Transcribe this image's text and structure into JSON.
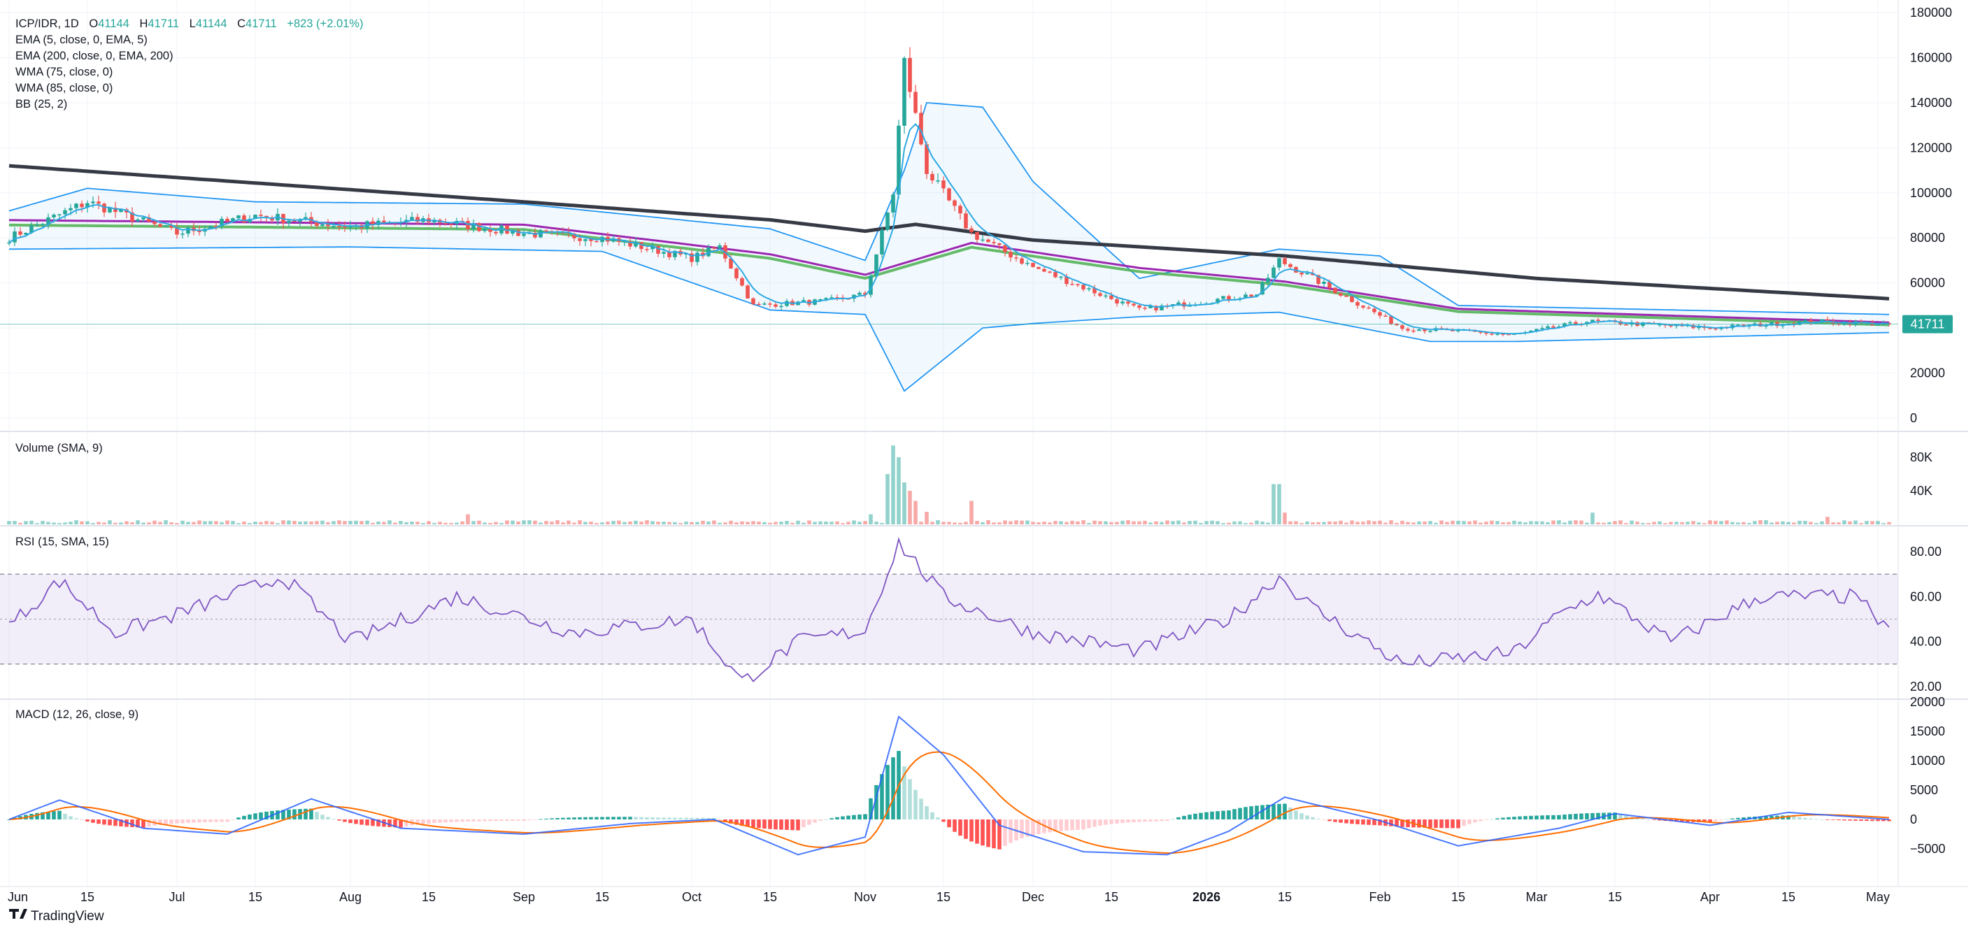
{
  "header": {
    "symbol": "ICP/IDR, 1D",
    "o_label": "O",
    "o_value": "41144",
    "h_label": "H",
    "h_value": "41711",
    "l_label": "L",
    "l_value": "41144",
    "c_label": "C",
    "c_value": "41711",
    "change": "+823 (+2.01%)"
  },
  "indicators": [
    "EMA (5, close, 0, EMA, 5)",
    "EMA (200, close, 0, EMA, 200)",
    "WMA (75, close, 0)",
    "WMA (85, close, 0)",
    "BB (25, 2)"
  ],
  "pane_titles": {
    "volume": "Volume (SMA, 9)",
    "rsi": "RSI (15, SMA, 15)",
    "macd": "MACD (12, 26, close, 9)"
  },
  "price_tag": "41711",
  "brand": "TradingView",
  "colors": {
    "up": "#26a69a",
    "down": "#ef5350",
    "ema5": "#2ca9e1",
    "ema200": "#363a45",
    "wma75": "#9c27b0",
    "wma85": "#4caf50",
    "bb": "#2196f3",
    "rsi": "#7e57c2",
    "macd": "#2962ff",
    "signal": "#ff6d00"
  },
  "chart_data": {
    "type": "candlestick+indicators",
    "x_ticks": [
      "Jun",
      "15",
      "Jul",
      "15",
      "Aug",
      "15",
      "Sep",
      "15",
      "Oct",
      "15",
      "Nov",
      "15",
      "Dec",
      "15",
      "2026",
      "15",
      "Feb",
      "15",
      "Mar",
      "15",
      "Apr",
      "15",
      "May"
    ],
    "price_axis": {
      "ticks": [
        "180000",
        "160000",
        "140000",
        "120000",
        "100000",
        "80000",
        "60000",
        "40000",
        "20000",
        "0"
      ],
      "range": [
        0,
        180000
      ]
    },
    "volume_axis": {
      "ticks": [
        "80K",
        "40K"
      ],
      "range": [
        0,
        100000
      ]
    },
    "rsi_axis": {
      "ticks": [
        "80.00",
        "60.00",
        "40.00",
        "20.00"
      ],
      "band": [
        30,
        70
      ],
      "mid": 50
    },
    "macd_axis": {
      "ticks": [
        "20000",
        "15000",
        "10000",
        "5000",
        "0",
        "−5000"
      ],
      "range": [
        -6500,
        20000
      ]
    },
    "price_anchors": [
      [
        "2025-06-01",
        80000
      ],
      [
        "2025-06-15",
        96000
      ],
      [
        "2025-07-01",
        82000
      ],
      [
        "2025-07-15",
        90000
      ],
      [
        "2025-08-01",
        85000
      ],
      [
        "2025-08-15",
        88000
      ],
      [
        "2025-09-01",
        82000
      ],
      [
        "2025-09-15",
        80000
      ],
      [
        "2025-10-01",
        71000
      ],
      [
        "2025-10-06",
        76000
      ],
      [
        "2025-10-12",
        50000
      ],
      [
        "2025-10-25",
        52000
      ],
      [
        "2025-11-01",
        55000
      ],
      [
        "2025-11-06",
        100000
      ],
      [
        "2025-11-08",
        158000
      ],
      [
        "2025-11-12",
        110000
      ],
      [
        "2025-11-20",
        82000
      ],
      [
        "2025-12-01",
        67000
      ],
      [
        "2025-12-20",
        48000
      ],
      [
        "2026-01-10",
        55000
      ],
      [
        "2026-01-14",
        70000
      ],
      [
        "2026-01-20",
        62000
      ],
      [
        "2026-02-05",
        40000
      ],
      [
        "2026-02-25",
        37000
      ],
      [
        "2026-03-10",
        43000
      ],
      [
        "2026-04-01",
        40000
      ],
      [
        "2026-04-20",
        43000
      ],
      [
        "2026-05-03",
        41711
      ]
    ],
    "ema200_anchors": [
      [
        "2025-06-01",
        112000
      ],
      [
        "2025-09-01",
        96000
      ],
      [
        "2025-10-15",
        88000
      ],
      [
        "2025-11-01",
        83000
      ],
      [
        "2025-11-10",
        86000
      ],
      [
        "2025-12-01",
        79000
      ],
      [
        "2026-01-15",
        72000
      ],
      [
        "2026-03-01",
        62000
      ],
      [
        "2026-05-03",
        53000
      ]
    ],
    "wma_anchors": [
      [
        "2025-06-01",
        87000
      ],
      [
        "2025-09-01",
        85000
      ],
      [
        "2025-10-15",
        72000
      ],
      [
        "2025-11-01",
        63000
      ],
      [
        "2025-11-20",
        77000
      ],
      [
        "2025-12-20",
        66000
      ],
      [
        "2026-01-15",
        60000
      ],
      [
        "2026-02-15",
        48000
      ],
      [
        "2026-05-03",
        42000
      ]
    ],
    "bb_upper_anchors": [
      [
        "2025-06-01",
        92000
      ],
      [
        "2025-06-15",
        102000
      ],
      [
        "2025-07-15",
        96000
      ],
      [
        "2025-09-01",
        95000
      ],
      [
        "2025-10-15",
        84000
      ],
      [
        "2025-11-01",
        70000
      ],
      [
        "2025-11-08",
        110000
      ],
      [
        "2025-11-12",
        140000
      ],
      [
        "2025-11-22",
        138000
      ],
      [
        "2025-12-01",
        105000
      ],
      [
        "2025-12-20",
        62000
      ],
      [
        "2026-01-14",
        75000
      ],
      [
        "2026-02-01",
        72000
      ],
      [
        "2026-02-15",
        50000
      ],
      [
        "2026-05-03",
        46000
      ]
    ],
    "bb_lower_anchors": [
      [
        "2025-06-01",
        75000
      ],
      [
        "2025-08-01",
        76000
      ],
      [
        "2025-09-15",
        74000
      ],
      [
        "2025-10-15",
        48000
      ],
      [
        "2025-11-01",
        46000
      ],
      [
        "2025-11-08",
        12000
      ],
      [
        "2025-11-22",
        40000
      ],
      [
        "2025-12-01",
        42000
      ],
      [
        "2025-12-20",
        45000
      ],
      [
        "2026-01-14",
        47000
      ],
      [
        "2026-02-10",
        34000
      ],
      [
        "2026-02-25",
        34000
      ],
      [
        "2026-05-03",
        38000
      ]
    ],
    "rsi_anchors": [
      [
        "2025-06-01",
        47
      ],
      [
        "2025-06-10",
        67
      ],
      [
        "2025-06-20",
        44
      ],
      [
        "2025-07-01",
        52
      ],
      [
        "2025-07-20",
        69
      ],
      [
        "2025-08-01",
        40
      ],
      [
        "2025-08-20",
        60
      ],
      [
        "2025-09-10",
        44
      ],
      [
        "2025-10-01",
        50
      ],
      [
        "2025-10-10",
        22
      ],
      [
        "2025-10-20",
        40
      ],
      [
        "2025-11-01",
        45
      ],
      [
        "2025-11-07",
        84
      ],
      [
        "2025-11-15",
        60
      ],
      [
        "2025-12-01",
        44
      ],
      [
        "2025-12-20",
        36
      ],
      [
        "2026-01-05",
        50
      ],
      [
        "2026-01-14",
        69
      ],
      [
        "2026-01-20",
        55
      ],
      [
        "2026-02-05",
        30
      ],
      [
        "2026-02-25",
        35
      ],
      [
        "2026-03-05",
        52
      ],
      [
        "2026-03-12",
        61
      ],
      [
        "2026-03-25",
        40
      ],
      [
        "2026-04-10",
        60
      ],
      [
        "2026-04-28",
        60
      ],
      [
        "2026-05-01",
        45
      ],
      [
        "2026-05-03",
        49
      ]
    ],
    "macd_anchors": [
      [
        "2025-06-01",
        0
      ],
      [
        "2025-06-10",
        3300
      ],
      [
        "2025-06-25",
        -1500
      ],
      [
        "2025-07-10",
        -2500
      ],
      [
        "2025-07-25",
        3500
      ],
      [
        "2025-08-10",
        -1500
      ],
      [
        "2025-09-01",
        -2500
      ],
      [
        "2025-09-20",
        -700
      ],
      [
        "2025-10-05",
        0
      ],
      [
        "2025-10-20",
        -6000
      ],
      [
        "2025-11-01",
        -3000
      ],
      [
        "2025-11-07",
        17500
      ],
      [
        "2025-11-15",
        11000
      ],
      [
        "2025-11-25",
        -1000
      ],
      [
        "2025-12-10",
        -5500
      ],
      [
        "2025-12-25",
        -6000
      ],
      [
        "2026-01-05",
        -2000
      ],
      [
        "2026-01-15",
        3800
      ],
      [
        "2026-02-01",
        -200
      ],
      [
        "2026-02-15",
        -4500
      ],
      [
        "2026-03-05",
        -1500
      ],
      [
        "2026-03-15",
        1000
      ],
      [
        "2026-04-01",
        -1000
      ],
      [
        "2026-04-15",
        1200
      ],
      [
        "2026-05-03",
        0
      ]
    ],
    "volume_spikes": [
      [
        "2025-08-22",
        12000
      ],
      [
        "2025-11-02",
        12000
      ],
      [
        "2025-11-05",
        60000
      ],
      [
        "2025-11-06",
        94000
      ],
      [
        "2025-11-07",
        80000
      ],
      [
        "2025-11-08",
        50000
      ],
      [
        "2025-11-09",
        40000
      ],
      [
        "2025-11-10",
        28000
      ],
      [
        "2025-11-12",
        15000
      ],
      [
        "2025-11-20",
        28000
      ],
      [
        "2026-01-13",
        48000
      ],
      [
        "2026-01-14",
        48000
      ],
      [
        "2026-01-15",
        14000
      ],
      [
        "2026-03-11",
        14000
      ],
      [
        "2026-04-22",
        9000
      ]
    ]
  }
}
